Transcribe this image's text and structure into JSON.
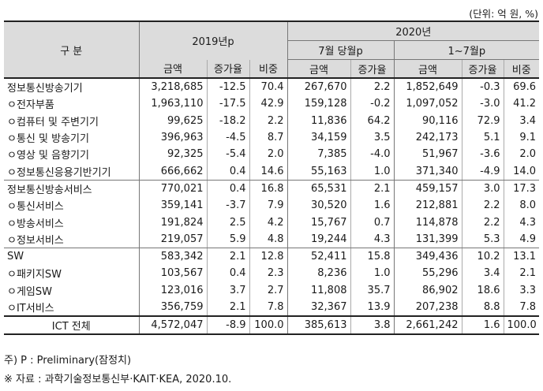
{
  "unit_note": "(단위: 억 원, %)",
  "header": {
    "category": "구    분",
    "y2019": "2019년p",
    "y2020": "2020년",
    "july": "7월 당월p",
    "jan_jul": "1~7월p",
    "amount": "금액",
    "growth": "증가율",
    "share": "비중"
  },
  "rows": [
    {
      "label": "정보통신방송기기",
      "a19": "3,218,685",
      "g19": "-12.5",
      "s19": "70.4",
      "am": "267,670",
      "gm": "2.2",
      "ac": "1,852,649",
      "gc": "-0.3",
      "sc": "69.6"
    },
    {
      "label": "ㅇ전자부품",
      "a19": "1,963,110",
      "g19": "-17.5",
      "s19": "42.9",
      "am": "159,128",
      "gm": "-0.2",
      "ac": "1,097,052",
      "gc": "-3.0",
      "sc": "41.2"
    },
    {
      "label": "ㅇ컴퓨터 및 주변기기",
      "a19": "99,625",
      "g19": "-18.2",
      "s19": "2.2",
      "am": "11,836",
      "gm": "64.2",
      "ac": "90,116",
      "gc": "72.9",
      "sc": "3.4"
    },
    {
      "label": "ㅇ통신 및 방송기기",
      "a19": "396,963",
      "g19": "-4.5",
      "s19": "8.7",
      "am": "34,159",
      "gm": "3.5",
      "ac": "242,173",
      "gc": "5.1",
      "sc": "9.1"
    },
    {
      "label": "ㅇ영상 및 음향기기",
      "a19": "92,325",
      "g19": "-5.4",
      "s19": "2.0",
      "am": "7,385",
      "gm": "-4.0",
      "ac": "51,967",
      "gc": "-3.6",
      "sc": "2.0"
    },
    {
      "label": "ㅇ정보통신응용기반기기",
      "a19": "666,662",
      "g19": "0.4",
      "s19": "14.6",
      "am": "55,163",
      "gm": "1.0",
      "ac": "371,340",
      "gc": "-4.9",
      "sc": "14.0"
    },
    {
      "label": "정보통신방송서비스",
      "a19": "770,021",
      "g19": "0.4",
      "s19": "16.8",
      "am": "65,531",
      "gm": "2.1",
      "ac": "459,157",
      "gc": "3.0",
      "sc": "17.3"
    },
    {
      "label": "ㅇ통신서비스",
      "a19": "359,141",
      "g19": "-3.7",
      "s19": "7.9",
      "am": "30,520",
      "gm": "1.6",
      "ac": "212,881",
      "gc": "2.2",
      "sc": "8.0"
    },
    {
      "label": "ㅇ방송서비스",
      "a19": "191,824",
      "g19": "2.5",
      "s19": "4.2",
      "am": "15,767",
      "gm": "0.7",
      "ac": "114,878",
      "gc": "2.2",
      "sc": "4.3"
    },
    {
      "label": "ㅇ정보서비스",
      "a19": "219,057",
      "g19": "5.9",
      "s19": "4.8",
      "am": "19,244",
      "gm": "4.3",
      "ac": "131,399",
      "gc": "5.3",
      "sc": "4.9"
    },
    {
      "label": "SW",
      "a19": "583,342",
      "g19": "2.1",
      "s19": "12.8",
      "am": "52,411",
      "gm": "15.8",
      "ac": "349,436",
      "gc": "10.2",
      "sc": "13.1"
    },
    {
      "label": "ㅇ패키지SW",
      "a19": "103,567",
      "g19": "0.4",
      "s19": "2.3",
      "am": "8,236",
      "gm": "1.0",
      "ac": "55,296",
      "gc": "3.4",
      "sc": "2.1"
    },
    {
      "label": "ㅇ게임SW",
      "a19": "123,016",
      "g19": "3.7",
      "s19": "2.7",
      "am": "11,808",
      "gm": "35.7",
      "ac": "86,902",
      "gc": "18.6",
      "sc": "3.3"
    },
    {
      "label": "ㅇIT서비스",
      "a19": "356,759",
      "g19": "2.1",
      "s19": "7.8",
      "am": "32,367",
      "gm": "13.9",
      "ac": "207,238",
      "gc": "8.8",
      "sc": "7.8"
    }
  ],
  "total": {
    "label": "ICT 전체",
    "a19": "4,572,047",
    "g19": "-8.9",
    "s19": "100.0",
    "am": "385,613",
    "gm": "3.8",
    "ac": "2,661,242",
    "gc": "1.6",
    "sc": "100.0"
  },
  "notes": {
    "preliminary": "주) P : Preliminary(잠정치)",
    "source": "※ 자료 : 과학기술정보통신부·KAIT·KEA, 2020.10."
  }
}
